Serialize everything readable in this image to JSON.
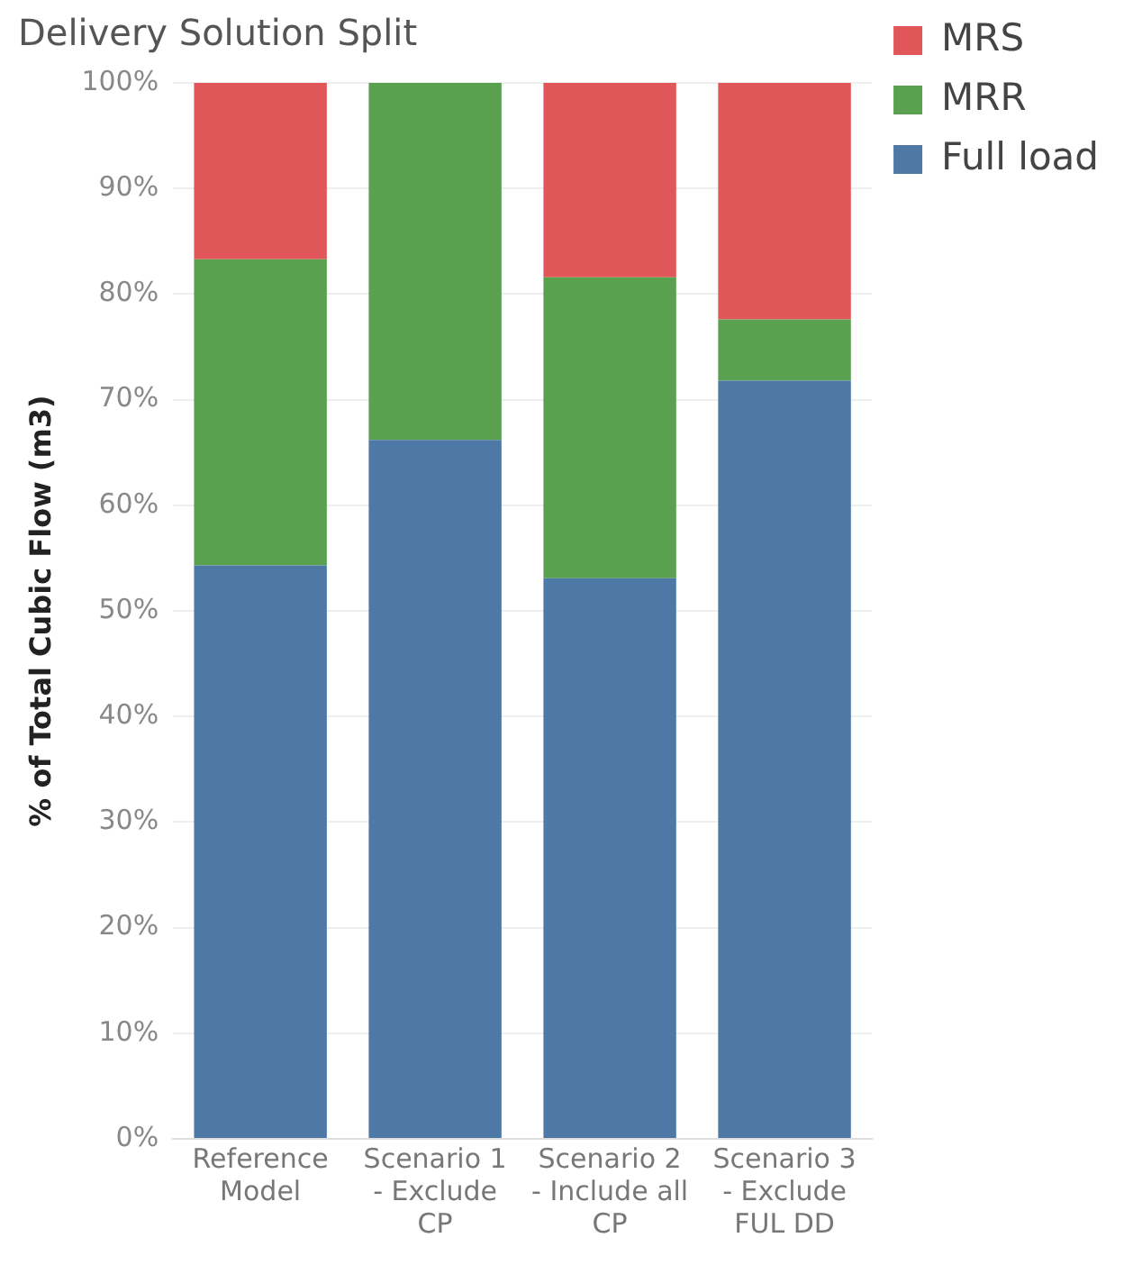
{
  "chart_data": {
    "type": "bar",
    "title": "Delivery Solution Split",
    "ylabel": "% of Total Cubic Flow (m3)",
    "categories": [
      "Reference Model",
      "Scenario 1 - Exclude CP",
      "Scenario 2 - Include all CP",
      "Scenario 3 - Exclude FUL DD"
    ],
    "stacked": true,
    "series": [
      {
        "name": "Full load",
        "color": "#4e79a7",
        "values": [
          54.3,
          66.2,
          53.1,
          71.8
        ]
      },
      {
        "name": "MRR",
        "color": "#59a14f",
        "values": [
          29.0,
          33.8,
          28.5,
          5.8
        ]
      },
      {
        "name": "MRS",
        "color": "#e15759",
        "values": [
          16.7,
          0,
          18.4,
          22.4
        ]
      }
    ],
    "ylim": [
      0,
      100
    ],
    "yticks": [
      {
        "value": 0,
        "label": "0%"
      },
      {
        "value": 10,
        "label": "10%"
      },
      {
        "value": 20,
        "label": "20%"
      },
      {
        "value": 30,
        "label": "30%"
      },
      {
        "value": 40,
        "label": "40%"
      },
      {
        "value": 50,
        "label": "50%"
      },
      {
        "value": 60,
        "label": "60%"
      },
      {
        "value": 70,
        "label": "70%"
      },
      {
        "value": 80,
        "label": "80%"
      },
      {
        "value": 90,
        "label": "90%"
      },
      {
        "value": 100,
        "label": "100%"
      }
    ],
    "grid": "y",
    "legend": "top right"
  }
}
